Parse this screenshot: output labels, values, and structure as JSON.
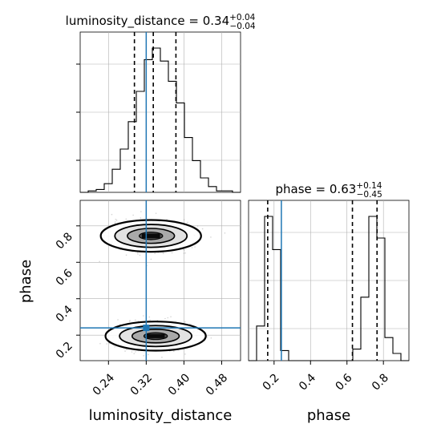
{
  "chart_data": {
    "type": "corner",
    "truth": {
      "luminosity_distance": 0.32,
      "phase": 0.24
    },
    "colors": {
      "truth": "#1f77b4",
      "hist": "#000000",
      "grid": "#b0b0b0",
      "quantile": "#000000"
    },
    "params": [
      {
        "name": "luminosity_distance",
        "median": 0.34,
        "err_plus": 0.04,
        "err_minus": 0.04,
        "quantiles": [
          0.295,
          0.335,
          0.383
        ],
        "title": {
          "prefix": "luminosity_distance = 0.34",
          "sup": "+0.04",
          "sub": "−0.04"
        },
        "xlabel": "luminosity_distance",
        "range": [
          0.18,
          0.52
        ],
        "ticks": [
          0.24,
          0.32,
          0.4,
          0.48
        ],
        "tick_labels": [
          "0.24",
          "0.32",
          "0.40",
          "0.48"
        ],
        "hist": {
          "edges": [
            0.18,
            0.197,
            0.214,
            0.231,
            0.248,
            0.265,
            0.282,
            0.299,
            0.316,
            0.333,
            0.35,
            0.367,
            0.384,
            0.401,
            0.418,
            0.435,
            0.452,
            0.469,
            0.486,
            0.503,
            0.52
          ],
          "counts": [
            0,
            0.01,
            0.02,
            0.06,
            0.16,
            0.3,
            0.49,
            0.7,
            0.92,
            1.0,
            0.91,
            0.77,
            0.62,
            0.38,
            0.22,
            0.1,
            0.04,
            0.01,
            0.01,
            0
          ]
        }
      },
      {
        "name": "phase",
        "median": 0.63,
        "err_plus": 0.14,
        "err_minus": 0.45,
        "quantiles": [
          0.165,
          0.63,
          0.765
        ],
        "title": {
          "prefix": "phase = 0.63",
          "sup": "+0.14",
          "sub": "−0.45"
        },
        "xlabel": "phase",
        "ylabel": "phase",
        "range": [
          0.06,
          0.94
        ],
        "ticks": [
          0.2,
          0.4,
          0.6,
          0.8
        ],
        "tick_labels": [
          "0.2",
          "0.4",
          "0.6",
          "0.8"
        ],
        "hist": {
          "edges": [
            0.06,
            0.104,
            0.148,
            0.192,
            0.236,
            0.28,
            0.324,
            0.368,
            0.412,
            0.456,
            0.5,
            0.544,
            0.588,
            0.632,
            0.676,
            0.72,
            0.764,
            0.808,
            0.852,
            0.896,
            0.94
          ],
          "counts": [
            0,
            0.24,
            1.0,
            0.77,
            0.07,
            0,
            0,
            0,
            0,
            0,
            0,
            0,
            0,
            0.08,
            0.44,
            1.0,
            0.85,
            0.16,
            0.05,
            0
          ]
        }
      }
    ],
    "scatter_2d": {
      "x": "luminosity_distance",
      "y": "phase",
      "modes": [
        {
          "x_center": 0.33,
          "y_center": 0.745,
          "x_sigma": 0.035,
          "y_sigma": 0.035
        },
        {
          "x_center": 0.34,
          "y_center": 0.195,
          "x_sigma": 0.035,
          "y_sigma": 0.032
        }
      ],
      "contour_levels": 4
    }
  }
}
